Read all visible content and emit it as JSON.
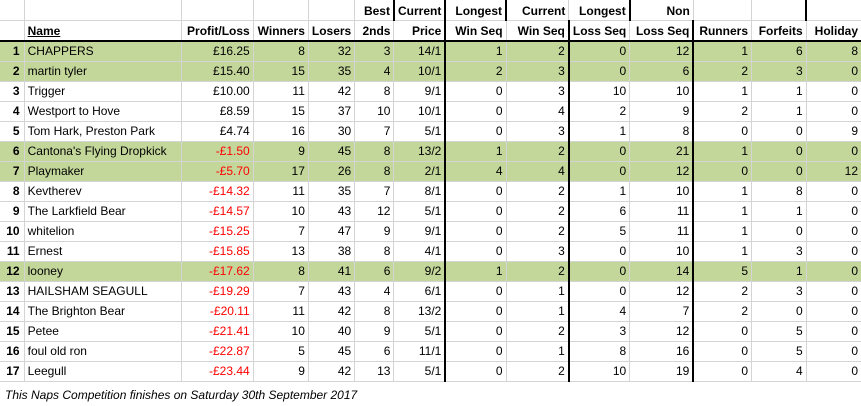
{
  "headers": {
    "name": "Name",
    "profit_loss": "Profit/Loss",
    "winners": "Winners",
    "losers": "Losers",
    "seconds": "2nds",
    "best_price_1": "Best",
    "best_price_2": "Price",
    "current_win_1": "Current",
    "current_win_2": "Win Seq",
    "longest_win_1": "Longest",
    "longest_win_2": "Win Seq",
    "current_loss_1": "Current",
    "current_loss_2": "Loss Seq",
    "longest_loss_1": "Longest",
    "longest_loss_2": "Loss Seq",
    "non_runners_1": "Non",
    "non_runners_2": "Runners",
    "forfeits": "Forfeits",
    "holiday": "Holiday"
  },
  "rows": [
    {
      "pos": "1",
      "name": "CHAPPERS",
      "pl": "£16.25",
      "winners": "8",
      "losers": "32",
      "seconds": "3",
      "best": "14/1",
      "cur_win": "1",
      "long_win": "2",
      "cur_loss": "0",
      "long_loss": "12",
      "nr": "1",
      "forfeits": "6",
      "holiday": "8",
      "negative": false,
      "highlight": true
    },
    {
      "pos": "2",
      "name": "martin tyler",
      "pl": "£15.40",
      "winners": "15",
      "losers": "35",
      "seconds": "4",
      "best": "10/1",
      "cur_win": "2",
      "long_win": "3",
      "cur_loss": "0",
      "long_loss": "6",
      "nr": "2",
      "forfeits": "3",
      "holiday": "0",
      "negative": false,
      "highlight": true
    },
    {
      "pos": "3",
      "name": "Trigger",
      "pl": "£10.00",
      "winners": "11",
      "losers": "42",
      "seconds": "8",
      "best": "9/1",
      "cur_win": "0",
      "long_win": "3",
      "cur_loss": "10",
      "long_loss": "10",
      "nr": "1",
      "forfeits": "1",
      "holiday": "0",
      "negative": false,
      "highlight": false
    },
    {
      "pos": "4",
      "name": "Westport to Hove",
      "pl": "£8.59",
      "winners": "15",
      "losers": "37",
      "seconds": "10",
      "best": "10/1",
      "cur_win": "0",
      "long_win": "4",
      "cur_loss": "2",
      "long_loss": "9",
      "nr": "2",
      "forfeits": "1",
      "holiday": "0",
      "negative": false,
      "highlight": false
    },
    {
      "pos": "5",
      "name": "Tom Hark, Preston Park",
      "pl": "£4.74",
      "winners": "16",
      "losers": "30",
      "seconds": "7",
      "best": "5/1",
      "cur_win": "0",
      "long_win": "3",
      "cur_loss": "1",
      "long_loss": "8",
      "nr": "0",
      "forfeits": "0",
      "holiday": "9",
      "negative": false,
      "highlight": false
    },
    {
      "pos": "6",
      "name": "Cantona's Flying Dropkick",
      "pl": "-£1.50",
      "winners": "9",
      "losers": "45",
      "seconds": "8",
      "best": "13/2",
      "cur_win": "1",
      "long_win": "2",
      "cur_loss": "0",
      "long_loss": "21",
      "nr": "1",
      "forfeits": "0",
      "holiday": "0",
      "negative": true,
      "highlight": true
    },
    {
      "pos": "7",
      "name": "Playmaker",
      "pl": "-£5.70",
      "winners": "17",
      "losers": "26",
      "seconds": "8",
      "best": "2/1",
      "cur_win": "4",
      "long_win": "4",
      "cur_loss": "0",
      "long_loss": "12",
      "nr": "0",
      "forfeits": "0",
      "holiday": "12",
      "negative": true,
      "highlight": true
    },
    {
      "pos": "8",
      "name": "Kevtherev",
      "pl": "-£14.32",
      "winners": "11",
      "losers": "35",
      "seconds": "7",
      "best": "8/1",
      "cur_win": "0",
      "long_win": "2",
      "cur_loss": "1",
      "long_loss": "10",
      "nr": "1",
      "forfeits": "8",
      "holiday": "0",
      "negative": true,
      "highlight": false
    },
    {
      "pos": "9",
      "name": "The Larkfield Bear",
      "pl": "-£14.57",
      "winners": "10",
      "losers": "43",
      "seconds": "12",
      "best": "5/1",
      "cur_win": "0",
      "long_win": "2",
      "cur_loss": "6",
      "long_loss": "11",
      "nr": "1",
      "forfeits": "1",
      "holiday": "0",
      "negative": true,
      "highlight": false
    },
    {
      "pos": "10",
      "name": "whitelion",
      "pl": "-£15.25",
      "winners": "7",
      "losers": "47",
      "seconds": "9",
      "best": "9/1",
      "cur_win": "0",
      "long_win": "2",
      "cur_loss": "5",
      "long_loss": "11",
      "nr": "1",
      "forfeits": "0",
      "holiday": "0",
      "negative": true,
      "highlight": false
    },
    {
      "pos": "11",
      "name": "Ernest",
      "pl": "-£15.85",
      "winners": "13",
      "losers": "38",
      "seconds": "8",
      "best": "4/1",
      "cur_win": "0",
      "long_win": "3",
      "cur_loss": "0",
      "long_loss": "10",
      "nr": "1",
      "forfeits": "3",
      "holiday": "0",
      "negative": true,
      "highlight": false
    },
    {
      "pos": "12",
      "name": "looney",
      "pl": "-£17.62",
      "winners": "8",
      "losers": "41",
      "seconds": "6",
      "best": "9/2",
      "cur_win": "1",
      "long_win": "2",
      "cur_loss": "0",
      "long_loss": "14",
      "nr": "5",
      "forfeits": "1",
      "holiday": "0",
      "negative": true,
      "highlight": true
    },
    {
      "pos": "13",
      "name": "HAILSHAM SEAGULL",
      "pl": "-£19.29",
      "winners": "7",
      "losers": "43",
      "seconds": "4",
      "best": "6/1",
      "cur_win": "0",
      "long_win": "1",
      "cur_loss": "0",
      "long_loss": "12",
      "nr": "2",
      "forfeits": "3",
      "holiday": "0",
      "negative": true,
      "highlight": false
    },
    {
      "pos": "14",
      "name": "The Brighton Bear",
      "pl": "-£20.11",
      "winners": "11",
      "losers": "42",
      "seconds": "8",
      "best": "13/2",
      "cur_win": "0",
      "long_win": "1",
      "cur_loss": "4",
      "long_loss": "7",
      "nr": "2",
      "forfeits": "0",
      "holiday": "0",
      "negative": true,
      "highlight": false
    },
    {
      "pos": "15",
      "name": "Petee",
      "pl": "-£21.41",
      "winners": "10",
      "losers": "40",
      "seconds": "9",
      "best": "5/1",
      "cur_win": "0",
      "long_win": "2",
      "cur_loss": "3",
      "long_loss": "12",
      "nr": "0",
      "forfeits": "5",
      "holiday": "0",
      "negative": true,
      "highlight": false
    },
    {
      "pos": "16",
      "name": "foul old ron",
      "pl": "-£22.87",
      "winners": "5",
      "losers": "45",
      "seconds": "6",
      "best": "11/1",
      "cur_win": "0",
      "long_win": "1",
      "cur_loss": "8",
      "long_loss": "16",
      "nr": "0",
      "forfeits": "5",
      "holiday": "0",
      "negative": true,
      "highlight": false
    },
    {
      "pos": "17",
      "name": "Leegull",
      "pl": "-£23.44",
      "winners": "9",
      "losers": "42",
      "seconds": "13",
      "best": "5/1",
      "cur_win": "0",
      "long_win": "2",
      "cur_loss": "10",
      "long_loss": "19",
      "nr": "0",
      "forfeits": "4",
      "holiday": "0",
      "negative": true,
      "highlight": false
    }
  ],
  "footer": "This Naps Competition finishes on Saturday 30th September 2017",
  "colors": {
    "highlight": "#c4d79b",
    "negative": "#ff0000",
    "border": "#000000"
  }
}
